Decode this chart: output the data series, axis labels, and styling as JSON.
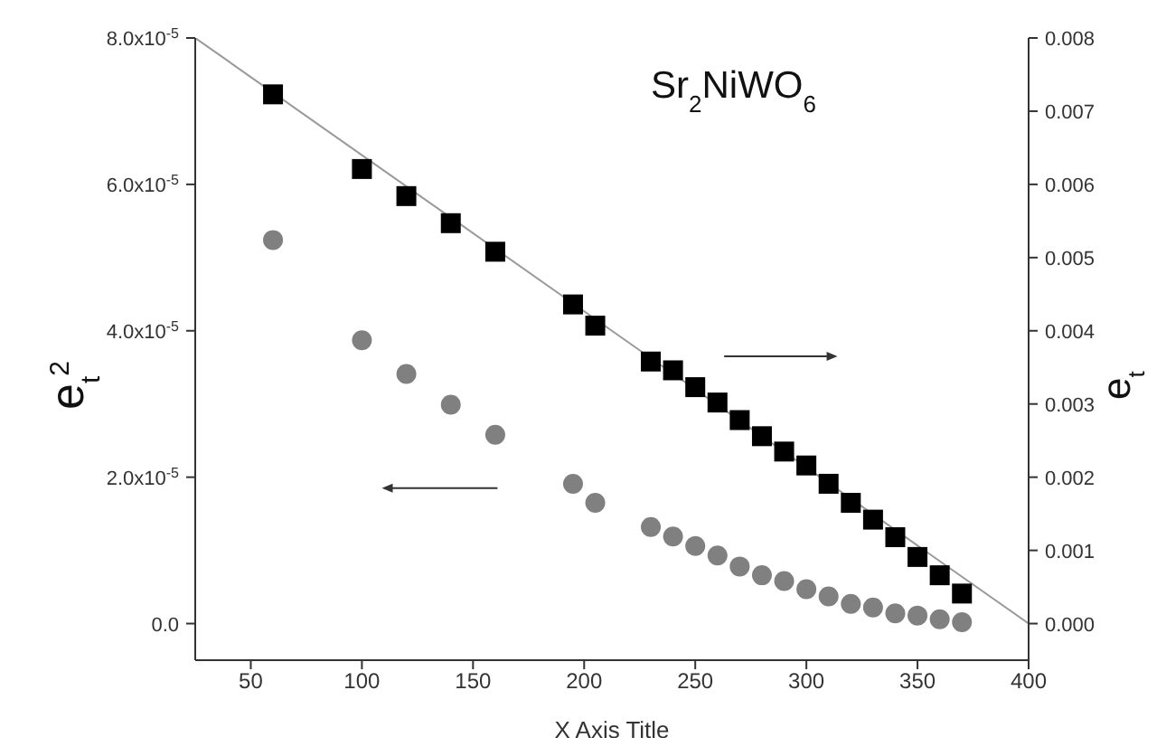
{
  "chart_data": {
    "type": "scatter",
    "title": "Sr$_{2}$NiWO$_{6}$",
    "xlabel": "X Axis Title",
    "ylabel": "e$_{t}$$^{2}$",
    "y2label": "e$_{t}$",
    "xlim": [
      25,
      400
    ],
    "xticks": [
      50,
      100,
      150,
      200,
      250,
      300,
      350,
      400
    ],
    "ylim": [
      -5e-06,
      8e-05
    ],
    "yticks": [
      {
        "value": 0,
        "label": "0.0"
      },
      {
        "value": 2e-05,
        "label": "2.0x10$^{-5}$"
      },
      {
        "value": 4e-05,
        "label": "4.0x10$^{-5}$"
      },
      {
        "value": 6e-05,
        "label": "6.0x10$^{-5}$"
      },
      {
        "value": 8e-05,
        "label": "8.0x10$^{-5}$"
      }
    ],
    "y2lim": [
      -0.0005,
      0.008
    ],
    "y2ticks": [
      {
        "value": 0,
        "label": "0.000"
      },
      {
        "value": 0.001,
        "label": "0.001"
      },
      {
        "value": 0.002,
        "label": "0.002"
      },
      {
        "value": 0.003,
        "label": "0.003"
      },
      {
        "value": 0.004,
        "label": "0.004"
      },
      {
        "value": 0.005,
        "label": "0.005"
      },
      {
        "value": 0.006,
        "label": "0.006"
      },
      {
        "value": 0.007,
        "label": "0.007"
      },
      {
        "value": 0.008,
        "label": "0.008"
      }
    ],
    "series": [
      {
        "marker": "circle",
        "color": "#808080",
        "x": [
          60,
          100,
          120,
          140,
          160,
          195,
          205,
          230,
          240,
          250,
          260,
          270,
          280,
          290,
          300,
          310,
          320,
          330,
          340,
          350,
          360,
          370
        ],
        "values": [
          5.24e-05,
          3.87e-05,
          3.41e-05,
          2.99e-05,
          2.58e-05,
          1.91e-05,
          1.65e-05,
          1.32e-05,
          1.19e-05,
          1.06e-05,
          9.3e-06,
          7.8e-06,
          6.6e-06,
          5.8e-06,
          4.7e-06,
          3.7e-06,
          2.7e-06,
          2.2e-06,
          1.4e-06,
          1.1e-06,
          6e-07,
          2e-07
        ]
      },
      {
        "marker": "square",
        "color": "#000000",
        "axis": "y2",
        "x": [
          60,
          100,
          120,
          140,
          160,
          195,
          205,
          230,
          240,
          250,
          260,
          270,
          280,
          290,
          300,
          310,
          320,
          330,
          340,
          350,
          360,
          370
        ],
        "values": [
          0.00723,
          0.00621,
          0.00584,
          0.00547,
          0.00508,
          0.00436,
          0.00407,
          0.00358,
          0.00346,
          0.00323,
          0.00302,
          0.00278,
          0.00256,
          0.00235,
          0.00216,
          0.00191,
          0.00165,
          0.00142,
          0.00118,
          0.00091,
          0.00066,
          0.00041
        ]
      },
      {
        "type": "line",
        "marker": "none",
        "color": "#999999",
        "axis": "y2",
        "x": [
          25,
          400
        ],
        "values": [
          0.008,
          0
        ]
      }
    ]
  }
}
